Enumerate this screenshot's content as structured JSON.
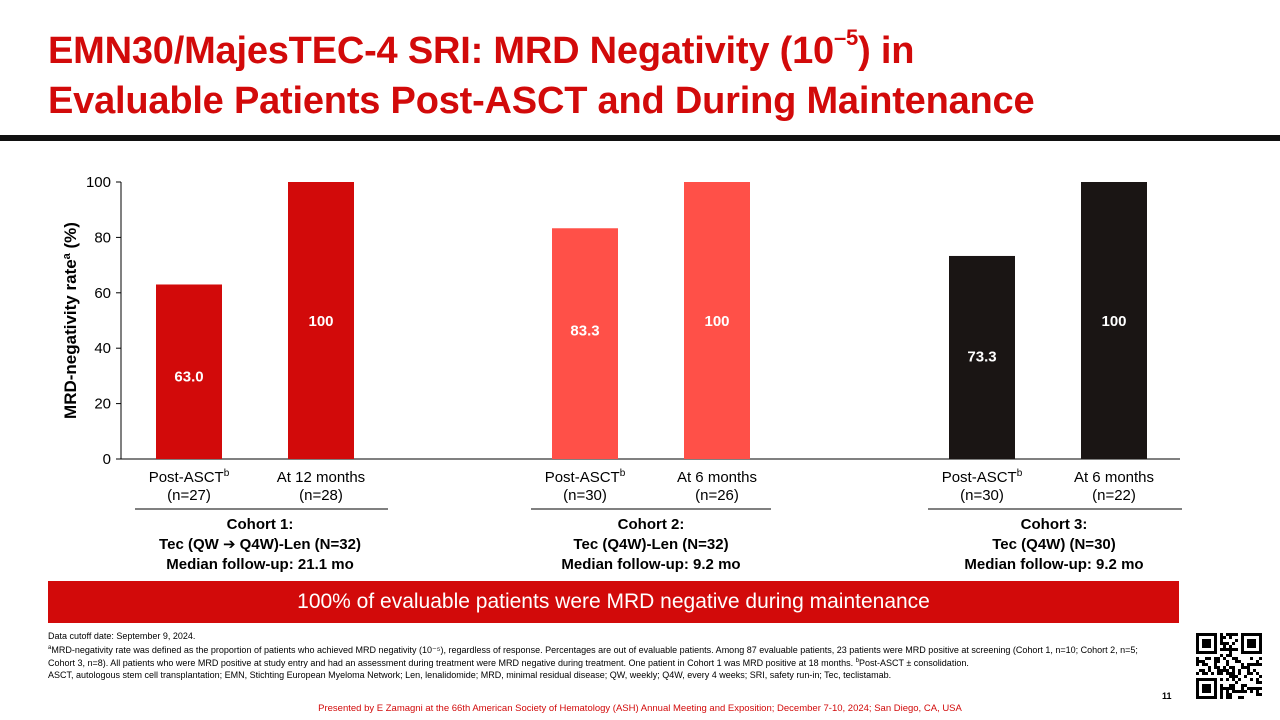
{
  "title": {
    "line1_pre": "EMN30/MajesTEC-4 SRI: MRD Negativity (10",
    "line1_sup": "–5",
    "line1_post": ") in",
    "line2": "Evaluable Patients Post-ASCT and During Maintenance"
  },
  "chart_data": {
    "type": "bar",
    "ylabel": "MRD-negativity rate",
    "ylabel_sup": "a",
    "ylabel_unit": " (%)",
    "ylim": [
      0,
      100
    ],
    "yticks": [
      "0",
      "20",
      "40",
      "60",
      "80",
      "100"
    ],
    "grid": false,
    "bars": [
      {
        "line1": "Post-ASCT",
        "sup": "b",
        "line2": "(n=27)",
        "value": 63.0,
        "label": "63.0",
        "color": "#d20a0a"
      },
      {
        "line1": "At 12 months",
        "sup": "",
        "line2": "(n=28)",
        "value": 100,
        "label": "100",
        "color": "#d20a0a"
      },
      {
        "line1": "Post-ASCT",
        "sup": "b",
        "line2": "(n=30)",
        "value": 83.3,
        "label": "83.3",
        "color": "#ff5048"
      },
      {
        "line1": "At 6 months",
        "sup": "",
        "line2": "(n=26)",
        "value": 100,
        "label": "100",
        "color": "#ff5048"
      },
      {
        "line1": "Post-ASCT",
        "sup": "b",
        "line2": "(n=30)",
        "value": 73.3,
        "label": "73.3",
        "color": "#1a1514"
      },
      {
        "line1": "At 6 months",
        "sup": "",
        "line2": "(n=22)",
        "value": 100,
        "label": "100",
        "color": "#1a1514"
      }
    ]
  },
  "cohorts": [
    {
      "line1": "Cohort 1:",
      "line2_pre": "Tec (QW ",
      "line2_arrow": "➔",
      "line2_post": " Q4W)-Len (N=32)",
      "line3": "Median follow-up: 21.1 mo"
    },
    {
      "line1": "Cohort 2:",
      "line2_pre": "Tec (Q4W)-Len (N=32)",
      "line2_arrow": "",
      "line2_post": "",
      "line3": "Median follow-up: 9.2 mo"
    },
    {
      "line1": "Cohort 3:",
      "line2_pre": "Tec (Q4W) (N=30)",
      "line2_arrow": "",
      "line2_post": "",
      "line3": "Median follow-up: 9.2 mo"
    }
  ],
  "banner": "100% of evaluable patients were MRD negative during maintenance",
  "footnotes": {
    "cutoff": "Data cutoff date: September 9, 2024.",
    "a_sup": "a",
    "a_text": "MRD-negativity rate was defined as the proportion of patients who achieved MRD negativity (10⁻⁵), regardless of response. Percentages are out of evaluable patients. Among 87 evaluable patients, 23 patients were MRD positive at screening (Cohort 1, n=10; Cohort 2, n=5; Cohort 3, n=8). All patients who were MRD positive at study entry and had an assessment during treatment were MRD negative during treatment. One patient in Cohort 1 was MRD positive at 18 months. ",
    "b_sup": "b",
    "b_text": "Post-ASCT ± consolidation.",
    "abbrev": "ASCT, autologous stem cell transplantation; EMN, Stichting European Myeloma Network; Len, lenalidomide; MRD, minimal residual disease; QW, weekly; Q4W, every 4 weeks; SRI, safety run-in; Tec, teclistamab."
  },
  "presenter": "Presented by E Zamagni at the 66th American Society of Hematology (ASH) Annual Meeting and Exposition; December 7-10, 2024; San Diego, CA, USA",
  "page_number": "11"
}
